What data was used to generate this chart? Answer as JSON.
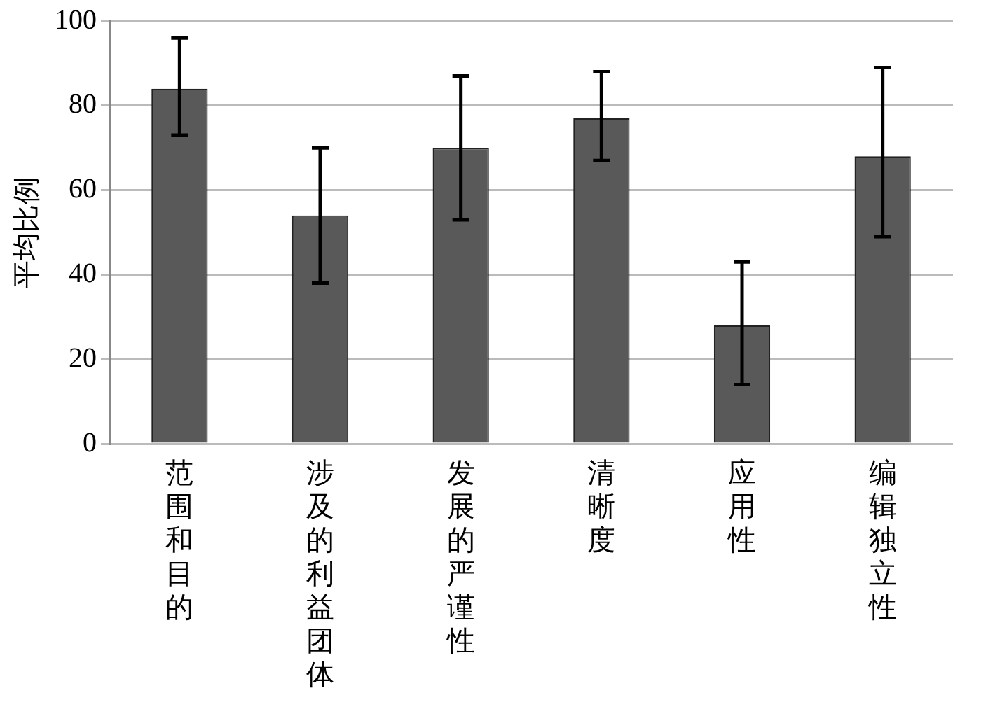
{
  "chart_data": {
    "type": "bar",
    "ylabel": "平均比例",
    "categories": [
      "范围和目的",
      "涉及的利益团体",
      "发展的严谨性",
      "清晰度",
      "应用性",
      "编辑独立性"
    ],
    "values": [
      84,
      54,
      70,
      77,
      28,
      68
    ],
    "errors": [
      [
        73,
        96
      ],
      [
        38,
        70
      ],
      [
        53,
        87
      ],
      [
        67,
        88
      ],
      [
        14,
        43
      ],
      [
        49,
        89
      ]
    ],
    "color": "#595959",
    "ylim": [
      0,
      100
    ],
    "yticks": [
      0,
      20,
      40,
      60,
      80,
      100
    ],
    "grid": "y",
    "legend": false
  }
}
